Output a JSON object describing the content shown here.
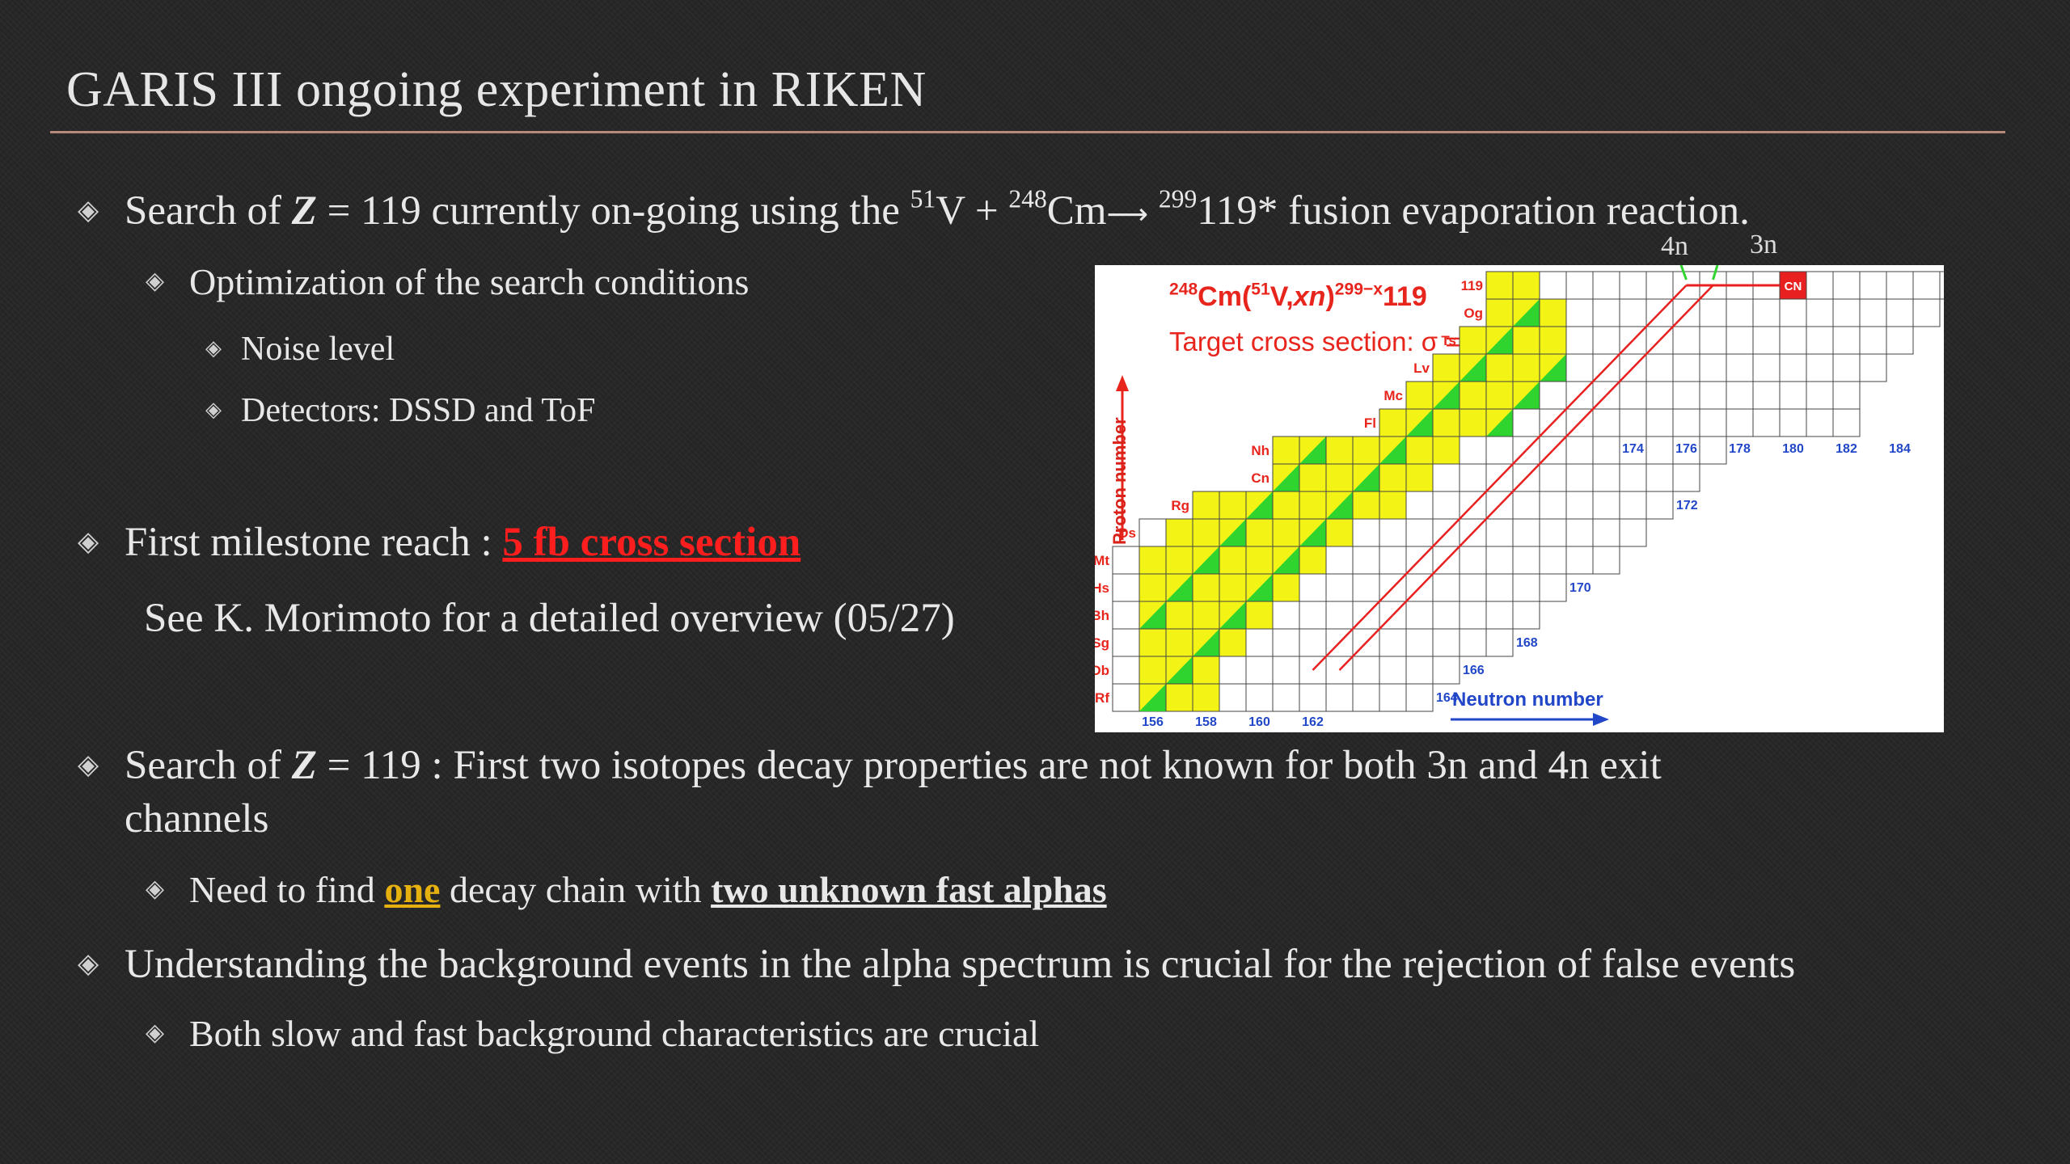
{
  "slide": {
    "title": "GARIS III ongoing experiment in RIKEN",
    "accent_rule_color": "#b58a7c"
  },
  "bullets": {
    "b1": {
      "prefix": "Search of ",
      "z": "Z",
      "mid": " = 119 currently on-going using the ",
      "sup1": "51",
      "el1": "V + ",
      "sup2": "248",
      "el2": "Cm",
      "arrow": "⟶",
      "sup3": "299",
      "rest": "119* fusion evaporation reaction."
    },
    "b1_1": "Optimization of the search conditions",
    "b1_1_1": "Noise level",
    "b1_1_2": "Detectors: DSSD and ToF",
    "b2": {
      "prefix": "First milestone reach : ",
      "highlight": "5 fb cross section"
    },
    "b2_note": "See K. Morimoto for a detailed overview (05/27)",
    "b3": {
      "prefix": "Search of ",
      "z": "Z",
      "line1_rest": " = 119 : First two isotopes decay properties are not known for both 3n and 4n exit",
      "line2": "channels"
    },
    "b3_1": {
      "prefix": "Need to find ",
      "highlight1": "one",
      "mid": " decay chain with ",
      "highlight2": "two unknown fast alphas"
    },
    "b4": "Understanding the background events in the alpha spectrum is crucial for the rejection of false events",
    "b4_1": "Both slow and fast background characteristics are crucial",
    "bullet_glyph": "◈"
  },
  "figure": {
    "channel_labels": [
      "4n",
      "3n"
    ],
    "reaction_sup1": "248",
    "reaction_el1": "Cm(",
    "reaction_sup2": "51",
    "reaction_el2": "V,",
    "reaction_xn": "xn",
    "reaction_close": ")",
    "reaction_sup3": "299−x",
    "reaction_z": "119",
    "target": "Target cross section: σ = 5 fb",
    "y_axis_label": "Proton number",
    "x_axis_label": "Neutron number",
    "elements": [
      {
        "sym": "119",
        "row": 0
      },
      {
        "sym": "Og",
        "row": 1
      },
      {
        "sym": "Ts",
        "row": 2
      },
      {
        "sym": "Lv",
        "row": 3
      },
      {
        "sym": "Mc",
        "row": 4
      },
      {
        "sym": "Fl",
        "row": 5
      },
      {
        "sym": "Nh",
        "row": 6
      },
      {
        "sym": "Cn",
        "row": 7
      },
      {
        "sym": "Rg",
        "row": 8
      },
      {
        "sym": "Ds",
        "row": 9
      },
      {
        "sym": "Mt",
        "row": 10
      },
      {
        "sym": "Hs",
        "row": 11
      },
      {
        "sym": "Bh",
        "row": 12
      },
      {
        "sym": "Sg",
        "row": 13
      },
      {
        "sym": "Db",
        "row": 14
      },
      {
        "sym": "Rf",
        "row": 15
      }
    ],
    "neutron_ticks_bottom": [
      "156",
      "158",
      "160",
      "162"
    ],
    "neutron_ticks_top": [
      "174",
      "176",
      "178",
      "180",
      "182",
      "184"
    ],
    "neutron_ticks_diag": [
      "164",
      "166",
      "168",
      "170",
      "172"
    ],
    "cn_label": "CN",
    "colors": {
      "title_red": "#e8251c",
      "axis_blue": "#2147c8",
      "cell_yellow": "#f3f316",
      "cell_green": "#2fd42f",
      "cn_red": "#e82020"
    }
  }
}
